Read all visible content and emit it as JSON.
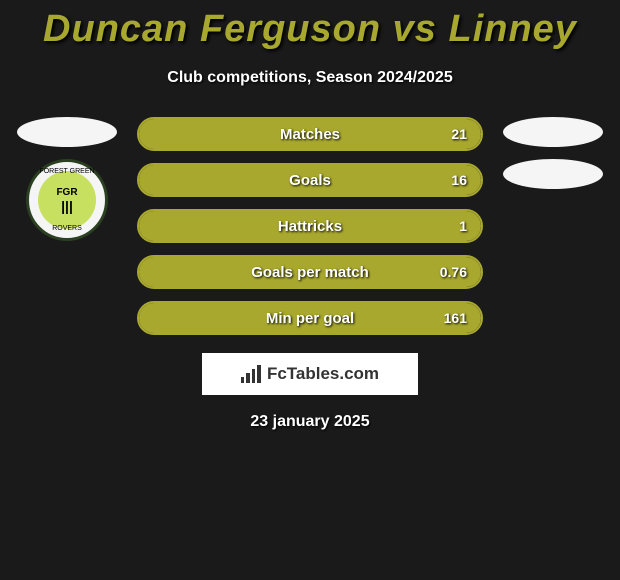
{
  "title": {
    "player1": "Duncan Ferguson",
    "vs": "vs",
    "player2": "Linney"
  },
  "subtitle": "Club competitions, Season 2024/2025",
  "team_badge_left": {
    "top_text": "FOREST GREEN",
    "bottom_text": "ROVERS",
    "center": "FGR"
  },
  "stats": [
    {
      "label": "Matches",
      "left_value": "",
      "right_value": "21",
      "left_fill_pct": 0,
      "right_fill_pct": 100
    },
    {
      "label": "Goals",
      "left_value": "",
      "right_value": "16",
      "left_fill_pct": 0,
      "right_fill_pct": 100
    },
    {
      "label": "Hattricks",
      "left_value": "",
      "right_value": "1",
      "left_fill_pct": 0,
      "right_fill_pct": 100
    },
    {
      "label": "Goals per match",
      "left_value": "",
      "right_value": "0.76",
      "left_fill_pct": 0,
      "right_fill_pct": 100
    },
    {
      "label": "Min per goal",
      "left_value": "",
      "right_value": "161",
      "left_fill_pct": 0,
      "right_fill_pct": 100
    }
  ],
  "branding": "FcTables.com",
  "date": "23 january 2025",
  "colors": {
    "accent": "#a8a82e",
    "background": "#1a1a1a",
    "text_light": "#ffffff",
    "badge_bg": "#ffffff"
  }
}
